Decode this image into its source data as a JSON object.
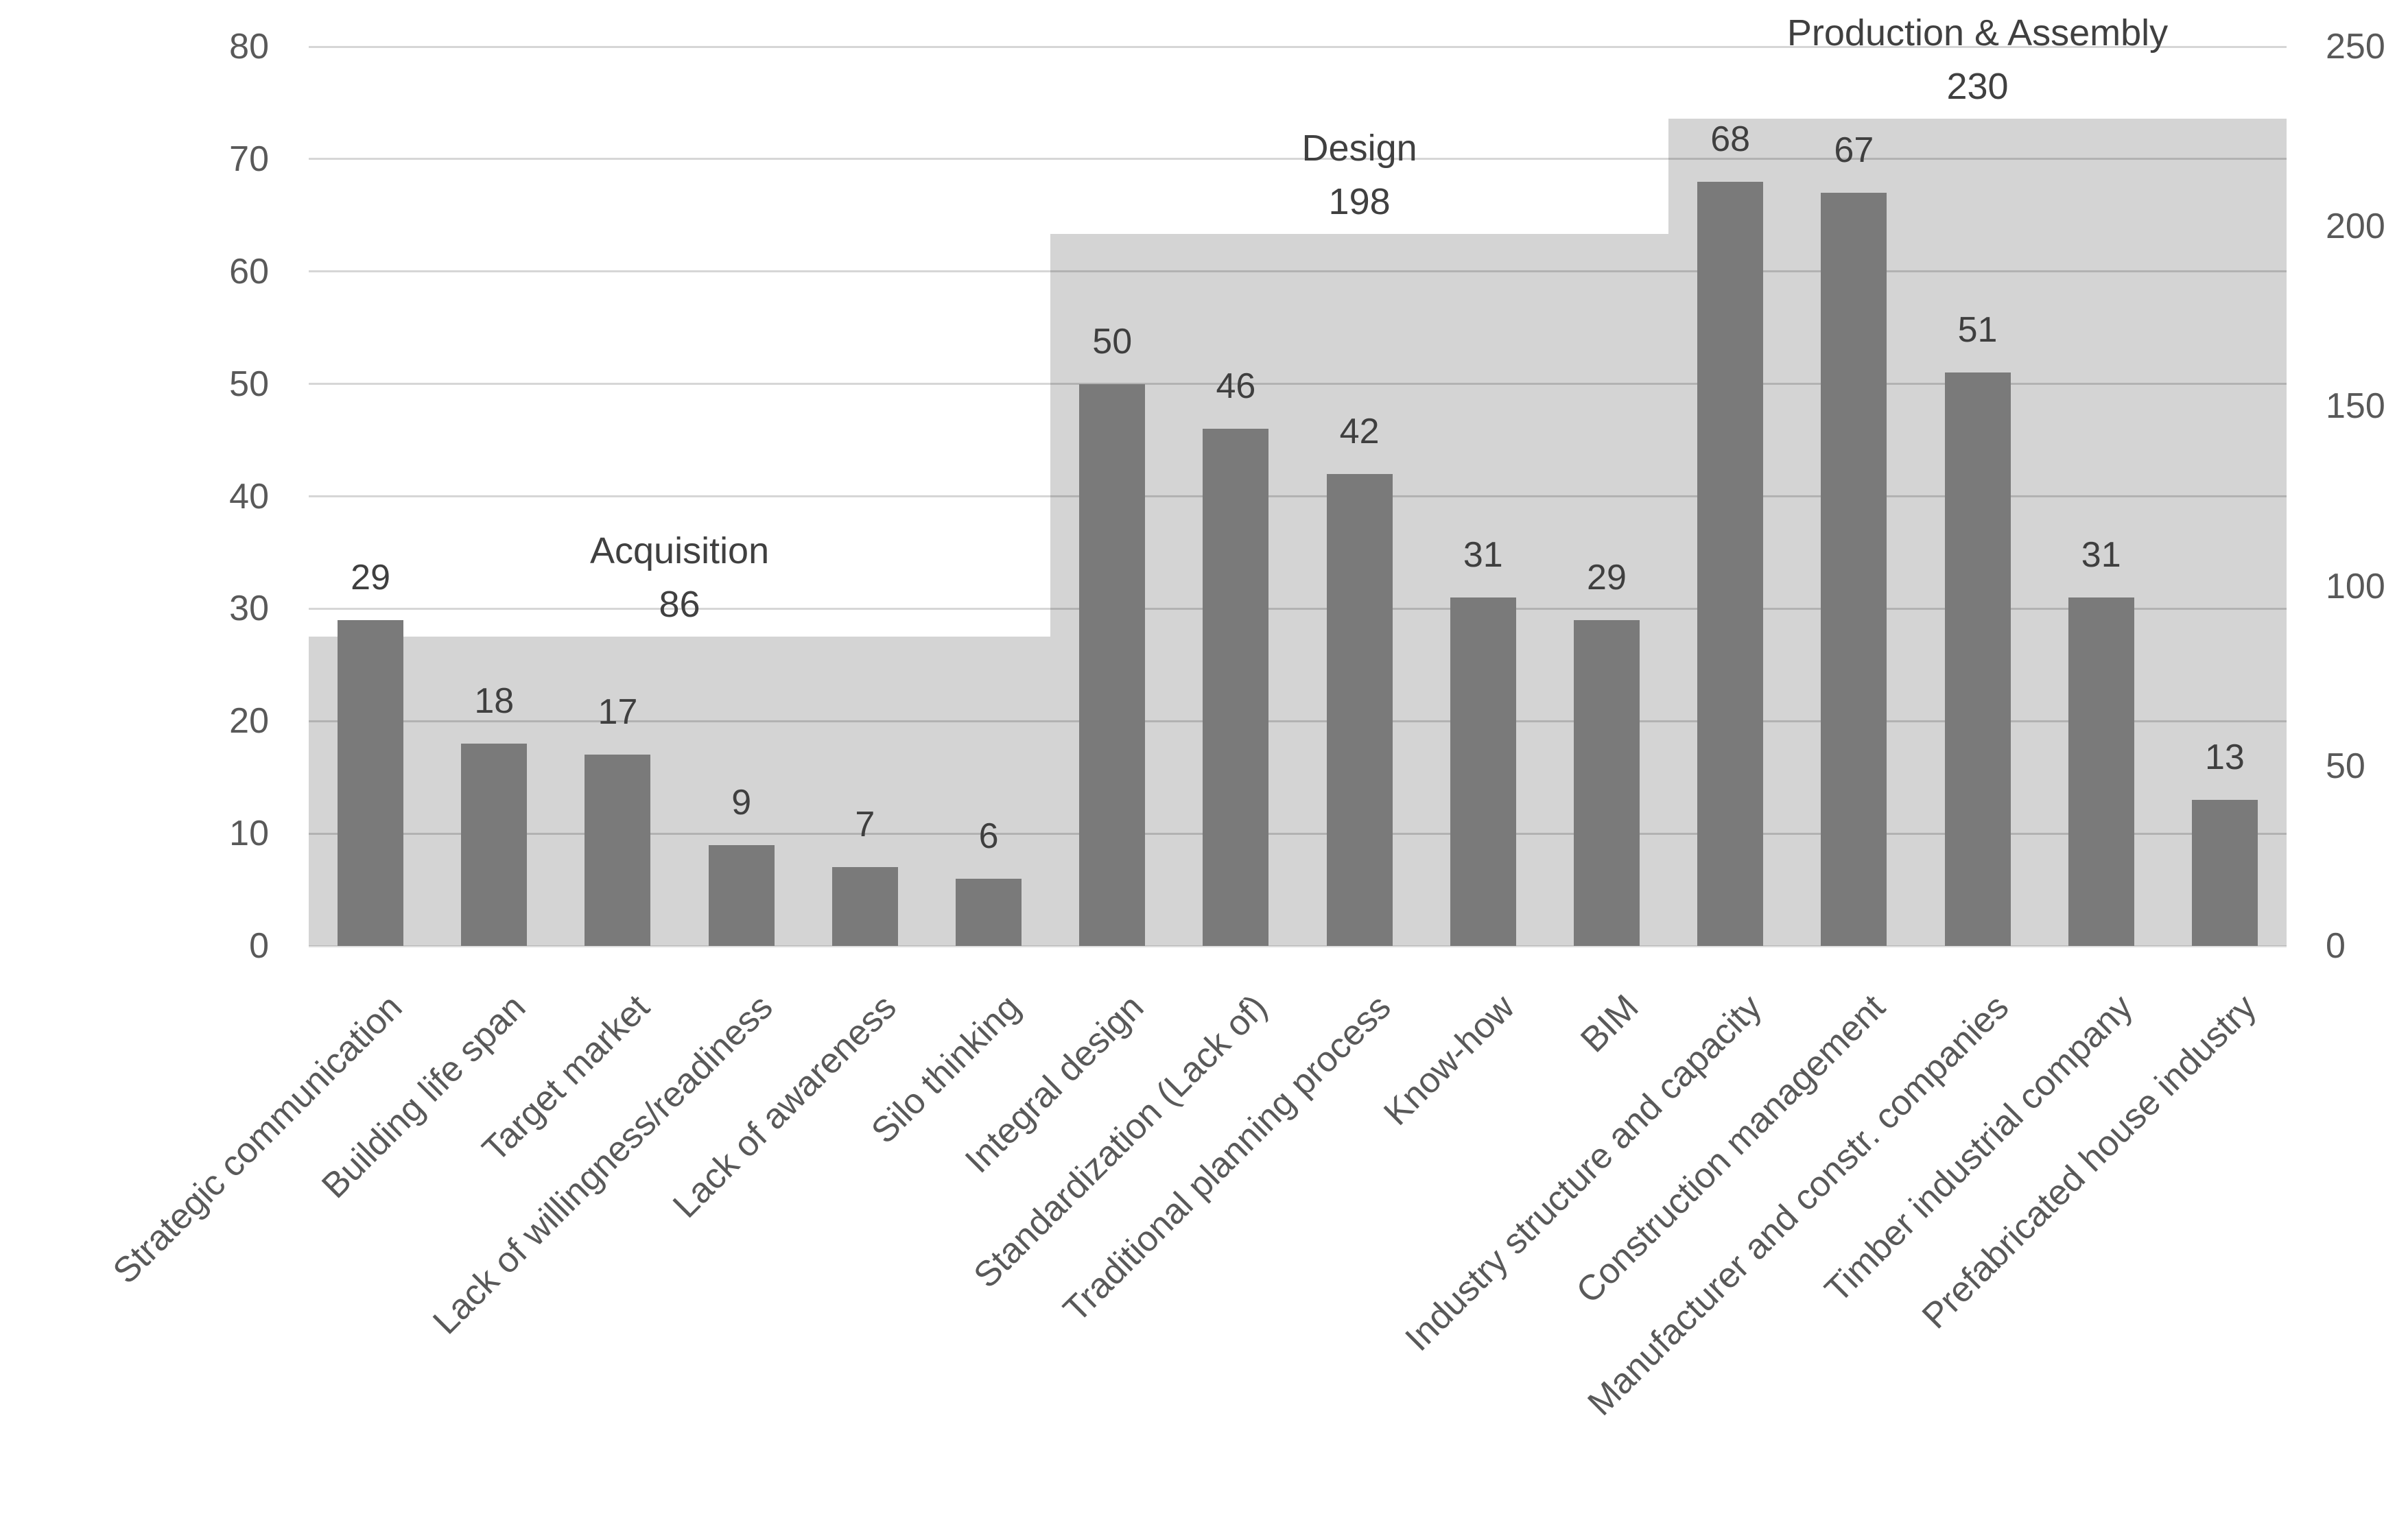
{
  "colors": {
    "background": "#ffffff",
    "bar": "#7a7a7a",
    "group_block": "#d4d4d4",
    "gridline": "rgba(0,0,0,0.16)",
    "axis_baseline": "rgba(0,0,0,0.13)",
    "tick_label": "#595959",
    "data_label": "#3f3f3f",
    "group_label": "#404040",
    "category_label": "#595959"
  },
  "chart_data": {
    "type": "bar",
    "title": "",
    "xlabel": "",
    "ylabel": "",
    "grid": true,
    "legend": false,
    "categories": [
      "Strategic communication",
      "Building life span",
      "Target market",
      "Lack of willingness/readiness",
      "Lack of awareness",
      "Silo thinking",
      "Integral design",
      "Standardization (Lack of)",
      "Traditional planning process",
      "Know-how",
      "BIM",
      "Industry structure and capacity",
      "Construction management",
      "Manufacturer and constr. companies",
      "Timber industrial company",
      "Prefabricated house industry"
    ],
    "values": [
      29,
      18,
      17,
      9,
      7,
      6,
      50,
      46,
      42,
      31,
      29,
      68,
      67,
      51,
      31,
      13
    ],
    "data_labels": [
      29,
      18,
      17,
      9,
      7,
      6,
      50,
      46,
      42,
      31,
      29,
      68,
      67,
      51,
      31,
      13
    ],
    "groups": [
      {
        "label": "Acquisition",
        "total": 86,
        "start_index": 0,
        "end_index": 5
      },
      {
        "label": "Design",
        "total": 198,
        "start_index": 6,
        "end_index": 10
      },
      {
        "label": "Production & Assembly",
        "total": 230,
        "start_index": 11,
        "end_index": 15
      }
    ],
    "left_axis": {
      "min": 0,
      "max": 80,
      "step": 10,
      "ticks": [
        0,
        10,
        20,
        30,
        40,
        50,
        60,
        70,
        80
      ]
    },
    "right_axis": {
      "min": 0,
      "max": 250,
      "step": 50,
      "ticks": [
        0,
        50,
        100,
        150,
        200,
        250
      ]
    }
  }
}
